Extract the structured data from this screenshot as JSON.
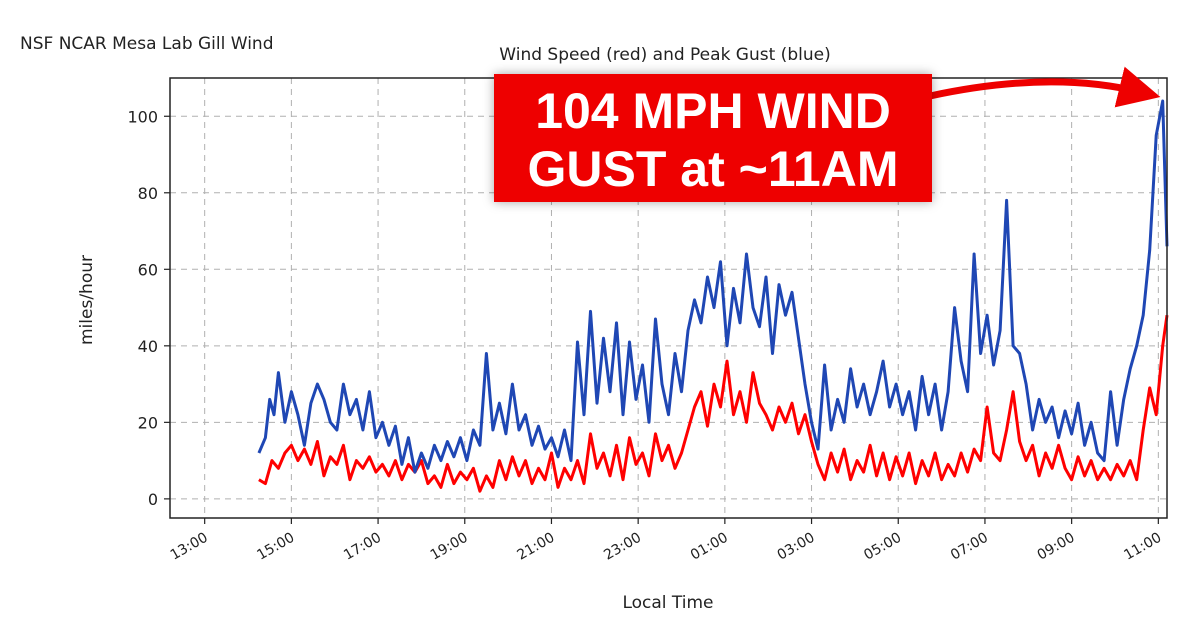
{
  "station_title": "NSF NCAR Mesa Lab Gill Wind",
  "callout": {
    "line1": "104 MPH WIND",
    "line2": "GUST at ~11AM"
  },
  "colors": {
    "speed": "#ff0000",
    "gust": "#1f47b4",
    "callout_bg": "#ee0000",
    "grid": "#b0b0b0"
  },
  "chart_data": {
    "type": "line",
    "title": "Wind Speed (red) and Peak Gust (blue)",
    "xlabel": "Local Time",
    "ylabel": "miles/hour",
    "xlim": [
      12.2,
      35.2
    ],
    "ylim": [
      -5,
      110
    ],
    "yticks": [
      0,
      20,
      40,
      60,
      80,
      100
    ],
    "xticks": [
      {
        "v": 13,
        "label": "13:00"
      },
      {
        "v": 15,
        "label": "15:00"
      },
      {
        "v": 17,
        "label": "17:00"
      },
      {
        "v": 19,
        "label": "19:00"
      },
      {
        "v": 21,
        "label": "21:00"
      },
      {
        "v": 23,
        "label": "23:00"
      },
      {
        "v": 25,
        "label": "01:00"
      },
      {
        "v": 27,
        "label": "03:00"
      },
      {
        "v": 29,
        "label": "05:00"
      },
      {
        "v": 31,
        "label": "07:00"
      },
      {
        "v": 33,
        "label": "09:00"
      },
      {
        "v": 35,
        "label": "11:00"
      }
    ],
    "grid": true,
    "series": [
      {
        "color": "#ff0000",
        "points": [
          [
            14.25,
            5
          ],
          [
            14.4,
            4
          ],
          [
            14.55,
            10
          ],
          [
            14.7,
            8
          ],
          [
            14.85,
            12
          ],
          [
            15.0,
            14
          ],
          [
            15.15,
            10
          ],
          [
            15.3,
            13
          ],
          [
            15.45,
            9
          ],
          [
            15.6,
            15
          ],
          [
            15.75,
            6
          ],
          [
            15.9,
            11
          ],
          [
            16.05,
            9
          ],
          [
            16.2,
            14
          ],
          [
            16.35,
            5
          ],
          [
            16.5,
            10
          ],
          [
            16.65,
            8
          ],
          [
            16.8,
            11
          ],
          [
            16.95,
            7
          ],
          [
            17.1,
            9
          ],
          [
            17.25,
            6
          ],
          [
            17.4,
            10
          ],
          [
            17.55,
            5
          ],
          [
            17.7,
            9
          ],
          [
            17.85,
            7
          ],
          [
            18.0,
            10
          ],
          [
            18.15,
            4
          ],
          [
            18.3,
            6
          ],
          [
            18.45,
            3
          ],
          [
            18.6,
            9
          ],
          [
            18.75,
            4
          ],
          [
            18.9,
            7
          ],
          [
            19.05,
            5
          ],
          [
            19.2,
            8
          ],
          [
            19.35,
            2
          ],
          [
            19.5,
            6
          ],
          [
            19.65,
            3
          ],
          [
            19.8,
            10
          ],
          [
            19.95,
            5
          ],
          [
            20.1,
            11
          ],
          [
            20.25,
            6
          ],
          [
            20.4,
            10
          ],
          [
            20.55,
            4
          ],
          [
            20.7,
            8
          ],
          [
            20.85,
            5
          ],
          [
            21.0,
            12
          ],
          [
            21.15,
            3
          ],
          [
            21.3,
            8
          ],
          [
            21.45,
            5
          ],
          [
            21.6,
            10
          ],
          [
            21.75,
            4
          ],
          [
            21.9,
            17
          ],
          [
            22.05,
            8
          ],
          [
            22.2,
            12
          ],
          [
            22.35,
            6
          ],
          [
            22.5,
            14
          ],
          [
            22.65,
            5
          ],
          [
            22.8,
            16
          ],
          [
            22.95,
            9
          ],
          [
            23.1,
            12
          ],
          [
            23.25,
            6
          ],
          [
            23.4,
            17
          ],
          [
            23.55,
            10
          ],
          [
            23.7,
            14
          ],
          [
            23.85,
            8
          ],
          [
            24.0,
            12
          ],
          [
            24.15,
            18
          ],
          [
            24.3,
            24
          ],
          [
            24.45,
            28
          ],
          [
            24.6,
            19
          ],
          [
            24.75,
            30
          ],
          [
            24.9,
            24
          ],
          [
            25.05,
            36
          ],
          [
            25.2,
            22
          ],
          [
            25.35,
            28
          ],
          [
            25.5,
            20
          ],
          [
            25.65,
            33
          ],
          [
            25.8,
            25
          ],
          [
            25.95,
            22
          ],
          [
            26.1,
            18
          ],
          [
            26.25,
            24
          ],
          [
            26.4,
            20
          ],
          [
            26.55,
            25
          ],
          [
            26.7,
            17
          ],
          [
            26.85,
            22
          ],
          [
            27.0,
            15
          ],
          [
            27.15,
            9
          ],
          [
            27.3,
            5
          ],
          [
            27.45,
            12
          ],
          [
            27.6,
            7
          ],
          [
            27.75,
            13
          ],
          [
            27.9,
            5
          ],
          [
            28.05,
            10
          ],
          [
            28.2,
            7
          ],
          [
            28.35,
            14
          ],
          [
            28.5,
            6
          ],
          [
            28.65,
            12
          ],
          [
            28.8,
            5
          ],
          [
            28.95,
            11
          ],
          [
            29.1,
            6
          ],
          [
            29.25,
            12
          ],
          [
            29.4,
            4
          ],
          [
            29.55,
            10
          ],
          [
            29.7,
            6
          ],
          [
            29.85,
            12
          ],
          [
            30.0,
            5
          ],
          [
            30.15,
            9
          ],
          [
            30.3,
            6
          ],
          [
            30.45,
            12
          ],
          [
            30.6,
            7
          ],
          [
            30.75,
            13
          ],
          [
            30.9,
            10
          ],
          [
            31.05,
            24
          ],
          [
            31.2,
            12
          ],
          [
            31.35,
            10
          ],
          [
            31.5,
            18
          ],
          [
            31.65,
            28
          ],
          [
            31.8,
            15
          ],
          [
            31.95,
            10
          ],
          [
            32.1,
            14
          ],
          [
            32.25,
            6
          ],
          [
            32.4,
            12
          ],
          [
            32.55,
            8
          ],
          [
            32.7,
            14
          ],
          [
            32.85,
            8
          ],
          [
            33.0,
            5
          ],
          [
            33.15,
            11
          ],
          [
            33.3,
            6
          ],
          [
            33.45,
            10
          ],
          [
            33.6,
            5
          ],
          [
            33.75,
            8
          ],
          [
            33.9,
            5
          ],
          [
            34.05,
            9
          ],
          [
            34.2,
            6
          ],
          [
            34.35,
            10
          ],
          [
            34.5,
            5
          ],
          [
            34.65,
            18
          ],
          [
            34.8,
            29
          ],
          [
            34.95,
            22
          ],
          [
            35.1,
            40
          ],
          [
            35.2,
            48
          ]
        ]
      },
      {
        "color": "#1f47b4",
        "points": [
          [
            14.25,
            12
          ],
          [
            14.4,
            16
          ],
          [
            14.5,
            26
          ],
          [
            14.6,
            22
          ],
          [
            14.7,
            33
          ],
          [
            14.85,
            20
          ],
          [
            15.0,
            28
          ],
          [
            15.15,
            22
          ],
          [
            15.3,
            14
          ],
          [
            15.45,
            25
          ],
          [
            15.6,
            30
          ],
          [
            15.75,
            26
          ],
          [
            15.9,
            20
          ],
          [
            16.05,
            18
          ],
          [
            16.2,
            30
          ],
          [
            16.35,
            22
          ],
          [
            16.5,
            26
          ],
          [
            16.65,
            18
          ],
          [
            16.8,
            28
          ],
          [
            16.95,
            16
          ],
          [
            17.1,
            20
          ],
          [
            17.25,
            14
          ],
          [
            17.4,
            19
          ],
          [
            17.55,
            9
          ],
          [
            17.7,
            16
          ],
          [
            17.85,
            7
          ],
          [
            18.0,
            12
          ],
          [
            18.15,
            8
          ],
          [
            18.3,
            14
          ],
          [
            18.45,
            10
          ],
          [
            18.6,
            15
          ],
          [
            18.75,
            11
          ],
          [
            18.9,
            16
          ],
          [
            19.05,
            10
          ],
          [
            19.2,
            18
          ],
          [
            19.35,
            14
          ],
          [
            19.5,
            38
          ],
          [
            19.65,
            18
          ],
          [
            19.8,
            25
          ],
          [
            19.95,
            17
          ],
          [
            20.1,
            30
          ],
          [
            20.25,
            18
          ],
          [
            20.4,
            22
          ],
          [
            20.55,
            14
          ],
          [
            20.7,
            19
          ],
          [
            20.85,
            13
          ],
          [
            21.0,
            16
          ],
          [
            21.15,
            11
          ],
          [
            21.3,
            18
          ],
          [
            21.45,
            10
          ],
          [
            21.6,
            41
          ],
          [
            21.75,
            22
          ],
          [
            21.9,
            49
          ],
          [
            22.05,
            25
          ],
          [
            22.2,
            42
          ],
          [
            22.35,
            28
          ],
          [
            22.5,
            46
          ],
          [
            22.65,
            22
          ],
          [
            22.8,
            41
          ],
          [
            22.95,
            26
          ],
          [
            23.1,
            35
          ],
          [
            23.25,
            20
          ],
          [
            23.4,
            47
          ],
          [
            23.55,
            30
          ],
          [
            23.7,
            22
          ],
          [
            23.85,
            38
          ],
          [
            24.0,
            28
          ],
          [
            24.15,
            44
          ],
          [
            24.3,
            52
          ],
          [
            24.45,
            46
          ],
          [
            24.6,
            58
          ],
          [
            24.75,
            50
          ],
          [
            24.9,
            62
          ],
          [
            25.05,
            40
          ],
          [
            25.2,
            55
          ],
          [
            25.35,
            46
          ],
          [
            25.5,
            64
          ],
          [
            25.65,
            50
          ],
          [
            25.8,
            45
          ],
          [
            25.95,
            58
          ],
          [
            26.1,
            38
          ],
          [
            26.25,
            56
          ],
          [
            26.4,
            48
          ],
          [
            26.55,
            54
          ],
          [
            26.7,
            42
          ],
          [
            26.85,
            30
          ],
          [
            27.0,
            20
          ],
          [
            27.15,
            13
          ],
          [
            27.3,
            35
          ],
          [
            27.45,
            18
          ],
          [
            27.6,
            26
          ],
          [
            27.75,
            20
          ],
          [
            27.9,
            34
          ],
          [
            28.05,
            24
          ],
          [
            28.2,
            30
          ],
          [
            28.35,
            22
          ],
          [
            28.5,
            28
          ],
          [
            28.65,
            36
          ],
          [
            28.8,
            24
          ],
          [
            28.95,
            30
          ],
          [
            29.1,
            22
          ],
          [
            29.25,
            28
          ],
          [
            29.4,
            18
          ],
          [
            29.55,
            32
          ],
          [
            29.7,
            22
          ],
          [
            29.85,
            30
          ],
          [
            30.0,
            18
          ],
          [
            30.15,
            28
          ],
          [
            30.3,
            50
          ],
          [
            30.45,
            36
          ],
          [
            30.6,
            28
          ],
          [
            30.75,
            64
          ],
          [
            30.9,
            38
          ],
          [
            31.05,
            48
          ],
          [
            31.2,
            35
          ],
          [
            31.35,
            44
          ],
          [
            31.5,
            78
          ],
          [
            31.65,
            40
          ],
          [
            31.8,
            38
          ],
          [
            31.95,
            30
          ],
          [
            32.1,
            18
          ],
          [
            32.25,
            26
          ],
          [
            32.4,
            20
          ],
          [
            32.55,
            24
          ],
          [
            32.7,
            16
          ],
          [
            32.85,
            23
          ],
          [
            33.0,
            17
          ],
          [
            33.15,
            25
          ],
          [
            33.3,
            14
          ],
          [
            33.45,
            20
          ],
          [
            33.6,
            12
          ],
          [
            33.75,
            10
          ],
          [
            33.9,
            28
          ],
          [
            34.05,
            14
          ],
          [
            34.2,
            26
          ],
          [
            34.35,
            34
          ],
          [
            34.5,
            40
          ],
          [
            34.65,
            48
          ],
          [
            34.8,
            65
          ],
          [
            34.95,
            95
          ],
          [
            35.1,
            104
          ],
          [
            35.2,
            66
          ]
        ]
      }
    ]
  }
}
